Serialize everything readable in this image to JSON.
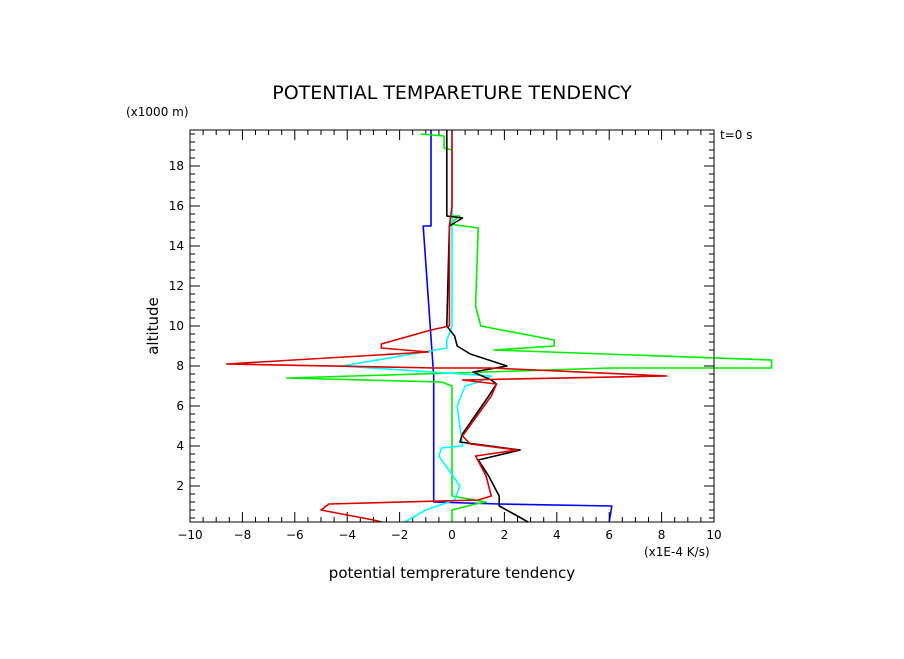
{
  "chart_data": {
    "type": "line",
    "title": "POTENTIAL TEMPARETURE TENDENCY",
    "xlabel": "potential temprerature tendency",
    "ylabel": "altitude",
    "x_unit": "(x1E-4 K/s)",
    "y_unit": "(x1000 m)",
    "annotation": "t=0 s",
    "xlim": [
      -10,
      10
    ],
    "ylim": [
      0.2,
      19.8
    ],
    "x_ticks": [
      "-10",
      "-8",
      "-6",
      "-4",
      "-2",
      "0",
      "2",
      "4",
      "6",
      "8",
      "10"
    ],
    "y_ticks": [
      "2",
      "4",
      "6",
      "8",
      "10",
      "12",
      "14",
      "16",
      "18"
    ],
    "series": [
      {
        "color": "#0000ff",
        "points": [
          [
            -0.8,
            19.8
          ],
          [
            -0.8,
            15.0
          ],
          [
            -1.1,
            15.0
          ],
          [
            -0.7,
            7.5
          ],
          [
            -0.7,
            2.5
          ],
          [
            -0.7,
            1.2
          ],
          [
            1.8,
            1.1
          ],
          [
            6.1,
            1.0
          ],
          [
            6.0,
            0.2
          ]
        ]
      },
      {
        "color": "#00ee00",
        "points": [
          [
            -1.2,
            19.6
          ],
          [
            -0.3,
            19.5
          ],
          [
            -0.3,
            18.9
          ],
          [
            0.0,
            18.8
          ],
          [
            0.0,
            15.5
          ],
          [
            0.3,
            15.5
          ],
          [
            -0.1,
            15.1
          ],
          [
            1.0,
            14.9
          ],
          [
            0.9,
            11.0
          ],
          [
            1.1,
            10.0
          ],
          [
            3.9,
            9.3
          ],
          [
            3.9,
            9.0
          ],
          [
            1.6,
            8.8
          ],
          [
            12.2,
            8.3
          ],
          [
            12.2,
            7.9
          ],
          [
            6.0,
            7.9
          ],
          [
            1.3,
            7.7
          ],
          [
            -6.3,
            7.4
          ],
          [
            -0.4,
            7.2
          ],
          [
            0.0,
            7.0
          ],
          [
            0.0,
            1.5
          ],
          [
            1.3,
            1.2
          ],
          [
            0.9,
            1.1
          ],
          [
            0.0,
            0.8
          ],
          [
            0.0,
            0.2
          ]
        ]
      },
      {
        "color": "#00ffff",
        "points": [
          [
            0.0,
            19.8
          ],
          [
            0.0,
            10.0
          ],
          [
            -0.2,
            9.3
          ],
          [
            -0.2,
            8.9
          ],
          [
            -1.5,
            8.6
          ],
          [
            -4.2,
            8.0
          ],
          [
            1.5,
            7.5
          ],
          [
            1.0,
            7.2
          ],
          [
            0.5,
            7.0
          ],
          [
            0.2,
            6.0
          ],
          [
            0.4,
            4.0
          ],
          [
            -0.4,
            3.9
          ],
          [
            -0.5,
            3.5
          ],
          [
            0.3,
            2.0
          ],
          [
            0.1,
            1.3
          ],
          [
            -1.0,
            0.8
          ],
          [
            -1.8,
            0.2
          ]
        ]
      },
      {
        "color": "#000000",
        "points": [
          [
            -0.2,
            19.8
          ],
          [
            -0.2,
            15.5
          ],
          [
            0.4,
            15.4
          ],
          [
            -0.1,
            15.0
          ],
          [
            -0.2,
            10.0
          ],
          [
            0.1,
            9.5
          ],
          [
            0.2,
            9.0
          ],
          [
            0.7,
            8.6
          ],
          [
            2.1,
            8.0
          ],
          [
            0.8,
            7.7
          ],
          [
            1.5,
            7.3
          ],
          [
            1.7,
            7.1
          ],
          [
            1.4,
            6.5
          ],
          [
            0.4,
            4.6
          ],
          [
            0.3,
            4.2
          ],
          [
            2.6,
            3.8
          ],
          [
            1.0,
            3.3
          ],
          [
            1.4,
            2.5
          ],
          [
            1.6,
            2.0
          ],
          [
            1.8,
            1.5
          ],
          [
            1.8,
            1.0
          ],
          [
            2.5,
            0.5
          ],
          [
            2.9,
            0.2
          ]
        ]
      },
      {
        "color": "#dd0000",
        "points": [
          [
            0.0,
            19.8
          ],
          [
            0.0,
            16.0
          ],
          [
            -0.1,
            15.0
          ],
          [
            -0.1,
            10.0
          ],
          [
            -0.8,
            9.8
          ],
          [
            -2.7,
            9.1
          ],
          [
            -2.7,
            8.9
          ],
          [
            -0.9,
            8.7
          ],
          [
            -8.6,
            8.1
          ],
          [
            -0.6,
            7.9
          ],
          [
            1.5,
            7.9
          ],
          [
            8.2,
            7.5
          ],
          [
            0.4,
            7.3
          ],
          [
            1.7,
            7.1
          ],
          [
            1.5,
            6.5
          ],
          [
            0.4,
            4.5
          ],
          [
            0.7,
            4.1
          ],
          [
            2.5,
            3.8
          ],
          [
            0.9,
            3.5
          ],
          [
            1.3,
            2.5
          ],
          [
            1.5,
            1.5
          ],
          [
            1.0,
            1.3
          ],
          [
            -4.7,
            1.1
          ],
          [
            -5.0,
            0.8
          ],
          [
            -3.0,
            0.3
          ],
          [
            -2.7,
            0.2
          ]
        ]
      }
    ],
    "grid": false,
    "legend": "none"
  }
}
